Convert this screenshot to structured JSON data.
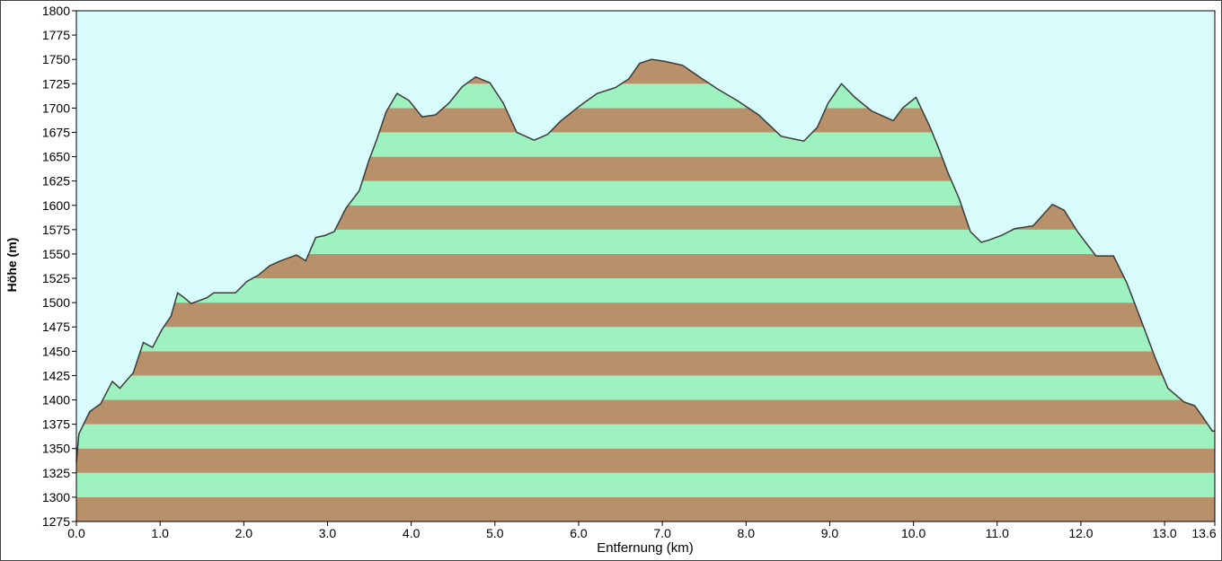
{
  "chart_data": {
    "type": "area",
    "x_label": "Entfernung   (km)",
    "y_label": "Höhe (m)",
    "x": [
      0,
      0.03,
      0.16,
      0.29,
      0.43,
      0.52,
      0.68,
      0.8,
      0.91,
      1.02,
      1.13,
      1.21,
      1.29,
      1.37,
      1.56,
      1.64,
      1.9,
      2.04,
      2.17,
      2.31,
      2.44,
      2.63,
      2.74,
      2.86,
      2.97,
      3.08,
      3.22,
      3.38,
      3.49,
      3.59,
      3.7,
      3.83,
      3.97,
      4.13,
      4.29,
      4.45,
      4.61,
      4.77,
      4.94,
      5.1,
      5.26,
      5.47,
      5.63,
      5.79,
      6.01,
      6.22,
      6.44,
      6.6,
      6.73,
      6.87,
      7.03,
      7.24,
      7.46,
      7.67,
      7.89,
      8.15,
      8.42,
      8.69,
      8.85,
      8.98,
      9.14,
      9.3,
      9.5,
      9.76,
      9.87,
      10.03,
      10.19,
      10.3,
      10.41,
      10.55,
      10.68,
      10.81,
      10.89,
      11.05,
      11.21,
      11.43,
      11.66,
      11.8,
      11.96,
      12.18,
      12.39,
      12.55,
      12.71,
      12.88,
      13.04,
      13.23,
      13.36,
      13.46,
      13.57,
      13.6
    ],
    "values": [
      1336,
      1365,
      1388,
      1396,
      1419,
      1412,
      1428,
      1459,
      1454,
      1472,
      1486,
      1510,
      1505,
      1499,
      1505,
      1510,
      1510,
      1522,
      1528,
      1538,
      1543,
      1549,
      1543,
      1567,
      1569,
      1573,
      1597,
      1615,
      1645,
      1668,
      1696,
      1715,
      1708,
      1691,
      1693,
      1705,
      1722,
      1732,
      1726,
      1705,
      1675,
      1667,
      1673,
      1687,
      1702,
      1715,
      1721,
      1730,
      1746,
      1750,
      1748,
      1744,
      1731,
      1719,
      1708,
      1693,
      1671,
      1666,
      1680,
      1705,
      1725,
      1711,
      1697,
      1687,
      1700,
      1711,
      1682,
      1659,
      1634,
      1606,
      1573,
      1562,
      1564,
      1569,
      1576,
      1579,
      1601,
      1595,
      1573,
      1548,
      1548,
      1520,
      1484,
      1445,
      1412,
      1398,
      1394,
      1382,
      1368,
      1368
    ],
    "xlim": [
      0,
      13.6
    ],
    "xticks": [
      {
        "value": 0,
        "label": "0.0"
      },
      {
        "value": 1,
        "label": "1.0"
      },
      {
        "value": 2,
        "label": "2.0"
      },
      {
        "value": 3,
        "label": "3.0"
      },
      {
        "value": 4,
        "label": "4.0"
      },
      {
        "value": 5,
        "label": "5.0"
      },
      {
        "value": 6,
        "label": "6.0"
      },
      {
        "value": 7,
        "label": "7.0"
      },
      {
        "value": 8,
        "label": "8.0"
      },
      {
        "value": 9,
        "label": "9.0"
      },
      {
        "value": 10,
        "label": "10.0"
      },
      {
        "value": 11,
        "label": "11.0"
      },
      {
        "value": 12,
        "label": "12.0"
      },
      {
        "value": 13,
        "label": "13.0"
      },
      13.6
    ],
    "ylim": [
      1275,
      1800
    ],
    "yticks": [
      1275,
      1300,
      1325,
      1350,
      1375,
      1400,
      1425,
      1450,
      1475,
      1500,
      1525,
      1550,
      1575,
      1600,
      1625,
      1650,
      1675,
      1700,
      1725,
      1750,
      1775,
      1800
    ],
    "band_colors": [
      "#b8906a",
      "#9ef2c0"
    ],
    "background": "#d8fcfc",
    "line_color": "#3a3a3a"
  }
}
